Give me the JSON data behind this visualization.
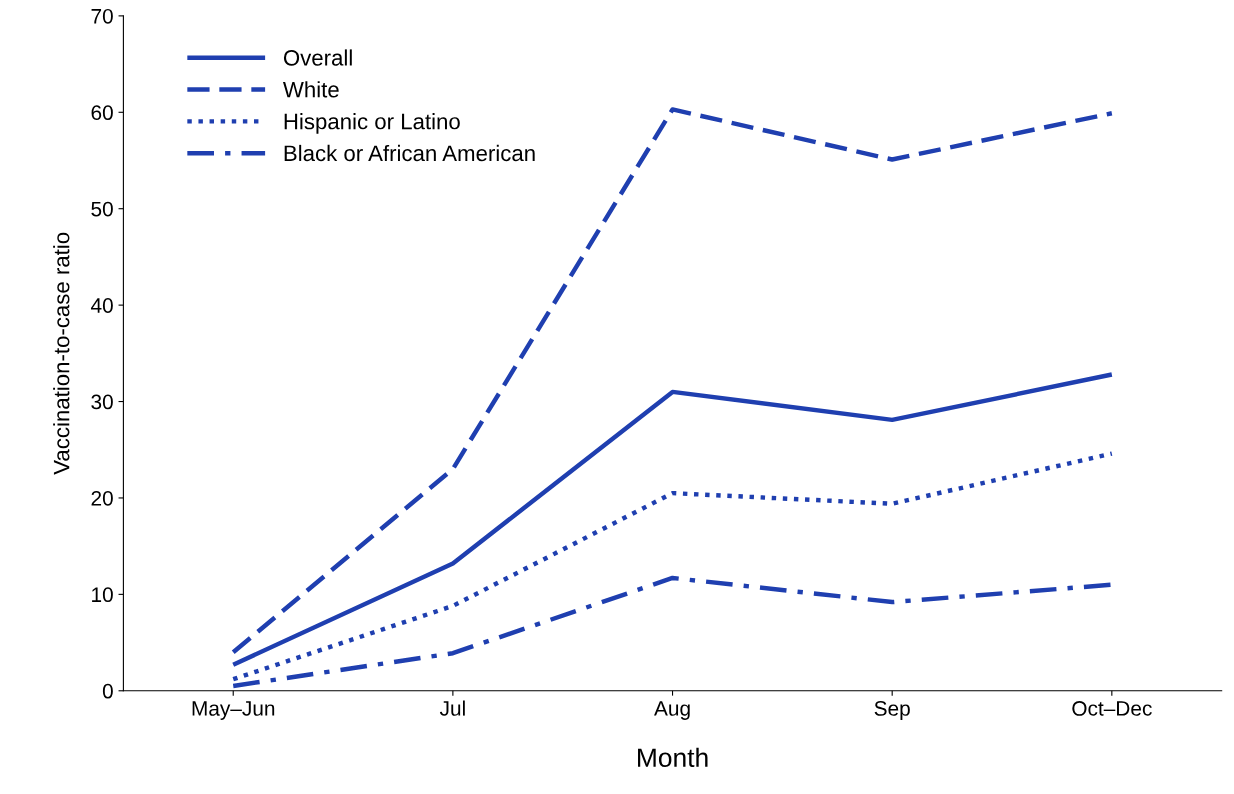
{
  "chart_data": {
    "type": "line",
    "xlabel": "Month",
    "ylabel": "Vaccination-to-case ratio",
    "categories": [
      "May–Jun",
      "Jul",
      "Aug",
      "Sep",
      "Oct–Dec"
    ],
    "series": [
      {
        "name": "Overall",
        "color": "#1f3fb0",
        "line_style": "solid",
        "values": [
          2.7,
          13.2,
          31.0,
          28.1,
          32.8
        ]
      },
      {
        "name": "White",
        "color": "#1f3fb0",
        "line_style": "dashed",
        "values": [
          4.0,
          23.0,
          60.3,
          55.1,
          59.9
        ]
      },
      {
        "name": "Hispanic or Latino",
        "color": "#1f3fb0",
        "line_style": "dotted",
        "values": [
          1.2,
          8.8,
          20.5,
          19.4,
          24.6
        ]
      },
      {
        "name": "Black or African American",
        "color": "#1f3fb0",
        "line_style": "dashdot",
        "values": [
          0.5,
          3.9,
          11.7,
          9.2,
          11.0
        ]
      }
    ],
    "ylim": [
      0,
      70
    ],
    "yticks": [
      0,
      10,
      20,
      30,
      40,
      50,
      60,
      70
    ],
    "grid": false,
    "legend": "top left",
    "marker": "none"
  }
}
